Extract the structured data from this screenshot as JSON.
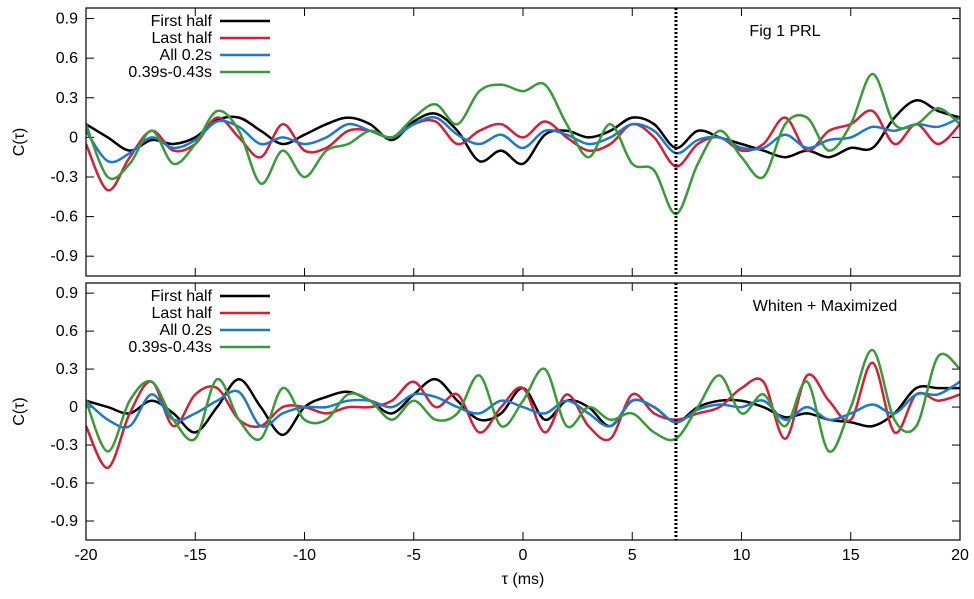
{
  "chart_data": [
    {
      "type": "line",
      "annotation": "Fig 1 PRL",
      "ylabel": "C(τ)",
      "xlim": [
        -20,
        20
      ],
      "ylim": [
        -1.05,
        0.98
      ],
      "y_ticks": [
        "0.9",
        "0.6",
        "0.3",
        "0",
        "-0.3",
        "-0.6",
        "-0.9"
      ],
      "y_tick_values": [
        0.9,
        0.6,
        0.3,
        0,
        -0.3,
        -0.6,
        -0.9
      ],
      "vline_x": 7,
      "legend_position": "top-left",
      "series": [
        {
          "name": "First half",
          "color": "#000000",
          "x": [
            -20,
            -19,
            -18,
            -17,
            -16,
            -15,
            -14,
            -13,
            -12,
            -11,
            -10,
            -9,
            -8,
            -7,
            -6,
            -5,
            -4,
            -3,
            -2,
            -1,
            0,
            1,
            2,
            3,
            4,
            5,
            6,
            7,
            8,
            9,
            10,
            11,
            12,
            13,
            14,
            15,
            16,
            17,
            18,
            19,
            20
          ],
          "y": [
            0.1,
            0.0,
            -0.1,
            -0.02,
            -0.05,
            0.0,
            0.13,
            0.15,
            0.05,
            -0.05,
            0.02,
            0.1,
            0.15,
            0.1,
            -0.02,
            0.12,
            0.18,
            0.05,
            -0.18,
            -0.1,
            -0.2,
            0.02,
            0.05,
            0.0,
            0.05,
            0.15,
            0.1,
            -0.08,
            0.05,
            0.0,
            -0.05,
            -0.1,
            -0.15,
            -0.1,
            -0.15,
            -0.08,
            -0.08,
            0.15,
            0.28,
            0.2,
            0.15
          ]
        },
        {
          "name": "Last half",
          "color": "#d0203a",
          "x": [
            -20,
            -19,
            -18,
            -17,
            -16,
            -15,
            -14,
            -13,
            -12,
            -11,
            -10,
            -9,
            -8,
            -7,
            -6,
            -5,
            -4,
            -3,
            -2,
            -1,
            0,
            1,
            2,
            3,
            4,
            5,
            6,
            7,
            8,
            9,
            10,
            11,
            12,
            13,
            14,
            15,
            16,
            17,
            18,
            19,
            20
          ],
          "y": [
            -0.05,
            -0.4,
            -0.15,
            0.05,
            -0.1,
            -0.05,
            0.15,
            0.0,
            -0.15,
            0.1,
            -0.1,
            -0.08,
            0.05,
            0.05,
            0.0,
            0.1,
            0.12,
            -0.05,
            0.05,
            0.1,
            0.0,
            0.12,
            0.0,
            -0.1,
            -0.05,
            0.1,
            0.0,
            -0.22,
            -0.05,
            0.0,
            -0.1,
            -0.05,
            0.15,
            -0.1,
            0.05,
            0.1,
            0.2,
            -0.05,
            0.1,
            -0.05,
            0.1
          ]
        },
        {
          "name": "All 0.2s",
          "color": "#1f78c8",
          "x": [
            -20,
            -19,
            -18,
            -17,
            -16,
            -15,
            -14,
            -13,
            -12,
            -11,
            -10,
            -9,
            -8,
            -7,
            -6,
            -5,
            -4,
            -3,
            -2,
            -1,
            0,
            1,
            2,
            3,
            4,
            5,
            6,
            7,
            8,
            9,
            10,
            11,
            12,
            13,
            14,
            15,
            16,
            17,
            18,
            19,
            20
          ],
          "y": [
            0.05,
            -0.18,
            -0.12,
            0.0,
            -0.08,
            -0.02,
            0.12,
            0.08,
            -0.05,
            0.0,
            -0.05,
            0.0,
            0.1,
            0.05,
            0.0,
            0.1,
            0.15,
            0.02,
            -0.05,
            0.02,
            -0.08,
            0.05,
            0.02,
            -0.05,
            0.0,
            0.1,
            0.05,
            -0.12,
            -0.02,
            0.0,
            -0.08,
            -0.08,
            0.02,
            -0.08,
            -0.02,
            0.0,
            0.08,
            0.05,
            0.1,
            0.08,
            0.15
          ]
        },
        {
          "name": "0.39s-0.43s",
          "color": "#3a9a3a",
          "x": [
            -20,
            -19,
            -18,
            -17,
            -16,
            -15,
            -14,
            -13,
            -12,
            -11,
            -10,
            -9,
            -8,
            -7,
            -6,
            -5,
            -4,
            -3,
            -2,
            -1,
            0,
            1,
            2,
            3,
            4,
            5,
            6,
            7,
            8,
            9,
            10,
            11,
            12,
            13,
            14,
            15,
            16,
            17,
            18,
            19,
            20
          ],
          "y": [
            0.1,
            -0.3,
            -0.2,
            0.05,
            -0.2,
            -0.05,
            0.2,
            0.05,
            -0.35,
            -0.1,
            -0.3,
            -0.1,
            -0.05,
            0.05,
            0.0,
            0.15,
            0.25,
            0.1,
            0.35,
            0.4,
            0.35,
            0.4,
            0.1,
            -0.15,
            0.1,
            -0.2,
            -0.25,
            -0.58,
            -0.2,
            0.05,
            -0.15,
            -0.3,
            0.1,
            0.15,
            -0.1,
            0.1,
            0.48,
            0.1,
            0.1,
            0.22,
            0.1
          ]
        }
      ]
    },
    {
      "type": "line",
      "annotation": "Whiten + Maximized",
      "ylabel": "C(τ)",
      "xlabel": "τ (ms)",
      "xlim": [
        -20,
        20
      ],
      "ylim": [
        -1.05,
        0.98
      ],
      "x_ticks": [
        "-20",
        "-15",
        "-10",
        "-5",
        "0",
        "5",
        "10",
        "15",
        "20"
      ],
      "x_tick_values": [
        -20,
        -15,
        -10,
        -5,
        0,
        5,
        10,
        15,
        20
      ],
      "y_ticks": [
        "0.9",
        "0.6",
        "0.3",
        "0",
        "-0.3",
        "-0.6",
        "-0.9"
      ],
      "y_tick_values": [
        0.9,
        0.6,
        0.3,
        0,
        -0.3,
        -0.6,
        -0.9
      ],
      "vline_x": 7,
      "legend_position": "top-left",
      "series": [
        {
          "name": "First half",
          "color": "#000000",
          "x": [
            -20,
            -19,
            -18,
            -17,
            -16,
            -15,
            -14,
            -13,
            -12,
            -11,
            -10,
            -9,
            -8,
            -7,
            -6,
            -5,
            -4,
            -3,
            -2,
            -1,
            0,
            1,
            2,
            3,
            4,
            5,
            6,
            7,
            8,
            9,
            10,
            11,
            12,
            13,
            14,
            15,
            16,
            17,
            18,
            19,
            20
          ],
          "y": [
            0.05,
            0.0,
            -0.05,
            0.05,
            -0.05,
            -0.2,
            0.0,
            0.22,
            0.0,
            -0.22,
            0.0,
            0.08,
            0.12,
            0.05,
            -0.05,
            0.1,
            0.22,
            0.05,
            -0.1,
            -0.05,
            0.15,
            -0.1,
            0.05,
            0.0,
            -0.15,
            0.05,
            0.0,
            -0.12,
            0.0,
            0.05,
            0.05,
            0.0,
            -0.08,
            -0.05,
            -0.1,
            -0.12,
            -0.15,
            -0.05,
            0.15,
            0.15,
            0.15
          ]
        },
        {
          "name": "Last half",
          "color": "#d0203a",
          "x": [
            -20,
            -19,
            -18,
            -17,
            -16,
            -15,
            -14,
            -13,
            -12,
            -11,
            -10,
            -9,
            -8,
            -7,
            -6,
            -5,
            -4,
            -3,
            -2,
            -1,
            0,
            1,
            2,
            3,
            4,
            5,
            6,
            7,
            8,
            9,
            10,
            11,
            12,
            13,
            14,
            15,
            16,
            17,
            18,
            19,
            20
          ],
          "y": [
            -0.15,
            -0.48,
            -0.05,
            0.2,
            -0.15,
            0.1,
            0.15,
            -0.1,
            -0.15,
            0.0,
            0.0,
            -0.05,
            0.0,
            0.0,
            0.05,
            0.2,
            0.0,
            0.1,
            -0.2,
            0.0,
            0.15,
            -0.2,
            0.1,
            -0.15,
            -0.25,
            0.1,
            -0.05,
            -0.1,
            -0.05,
            0.0,
            0.15,
            0.2,
            -0.25,
            0.25,
            0.05,
            -0.1,
            0.35,
            -0.2,
            0.1,
            0.05,
            0.1
          ]
        },
        {
          "name": "All 0.2s",
          "color": "#1f78c8",
          "x": [
            -20,
            -19,
            -18,
            -17,
            -16,
            -15,
            -14,
            -13,
            -12,
            -11,
            -10,
            -9,
            -8,
            -7,
            -6,
            -5,
            -4,
            -3,
            -2,
            -1,
            0,
            1,
            2,
            3,
            4,
            5,
            6,
            7,
            8,
            9,
            10,
            11,
            12,
            13,
            14,
            15,
            16,
            17,
            18,
            19,
            20
          ],
          "y": [
            0.05,
            -0.1,
            -0.15,
            0.1,
            -0.1,
            -0.05,
            0.05,
            0.12,
            -0.15,
            -0.05,
            0.0,
            0.0,
            0.05,
            0.05,
            0.0,
            0.1,
            0.08,
            0.0,
            -0.05,
            0.05,
            0.0,
            -0.05,
            0.05,
            -0.05,
            -0.15,
            0.05,
            0.0,
            -0.12,
            -0.02,
            0.02,
            0.0,
            0.05,
            -0.1,
            0.0,
            -0.1,
            -0.05,
            0.02,
            -0.05,
            0.1,
            0.1,
            0.2
          ]
        },
        {
          "name": "0.39s-0.43s",
          "color": "#3a9a3a",
          "x": [
            -20,
            -19,
            -18,
            -17,
            -16,
            -15,
            -14,
            -13,
            -12,
            -11,
            -10,
            -9,
            -8,
            -7,
            -6,
            -5,
            -4,
            -3,
            -2,
            -1,
            0,
            1,
            2,
            3,
            4,
            5,
            6,
            7,
            8,
            9,
            10,
            11,
            12,
            13,
            14,
            15,
            16,
            17,
            18,
            19,
            20
          ],
          "y": [
            0.05,
            -0.35,
            0.05,
            0.2,
            -0.1,
            -0.25,
            0.22,
            -0.1,
            -0.25,
            0.15,
            -0.1,
            -0.1,
            0.1,
            0.05,
            -0.1,
            0.05,
            -0.1,
            -0.05,
            0.25,
            -0.15,
            0.05,
            0.3,
            -0.15,
            0.0,
            -0.1,
            -0.05,
            -0.2,
            -0.25,
            0.0,
            0.25,
            -0.05,
            0.1,
            -0.15,
            0.2,
            -0.35,
            0.0,
            0.45,
            -0.1,
            -0.15,
            0.4,
            0.3
          ]
        }
      ]
    }
  ]
}
